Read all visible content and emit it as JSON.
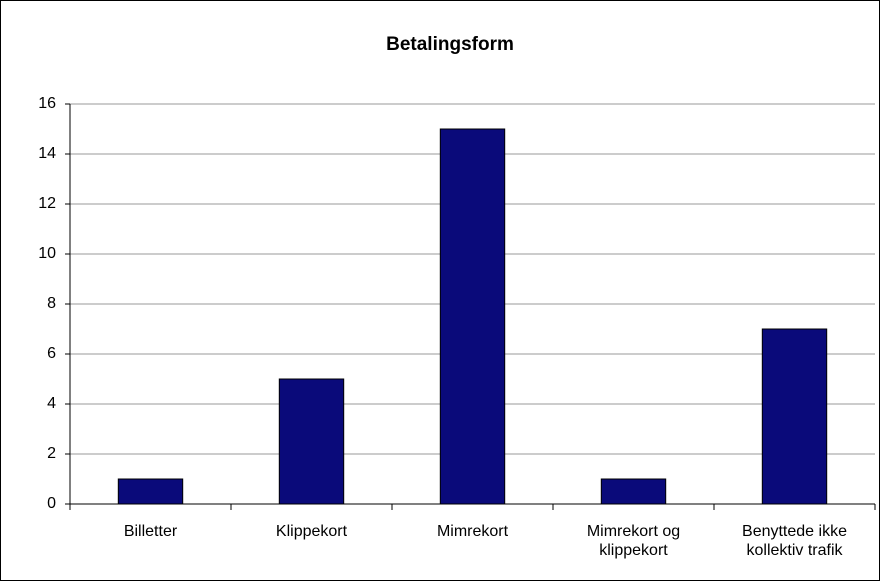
{
  "chart_data": {
    "type": "bar",
    "title": "Betalingsform",
    "categories": [
      "Billetter",
      "Klippekort",
      "Mimrekort",
      "Mimrekort og klippekort",
      "Benyttede ikke kollektiv trafik"
    ],
    "values": [
      1,
      5,
      15,
      1,
      7
    ],
    "color": "#0a0a7a",
    "ylim": [
      0,
      16
    ],
    "yticks": [
      0,
      2,
      4,
      6,
      8,
      10,
      12,
      14,
      16
    ],
    "grid": true
  }
}
